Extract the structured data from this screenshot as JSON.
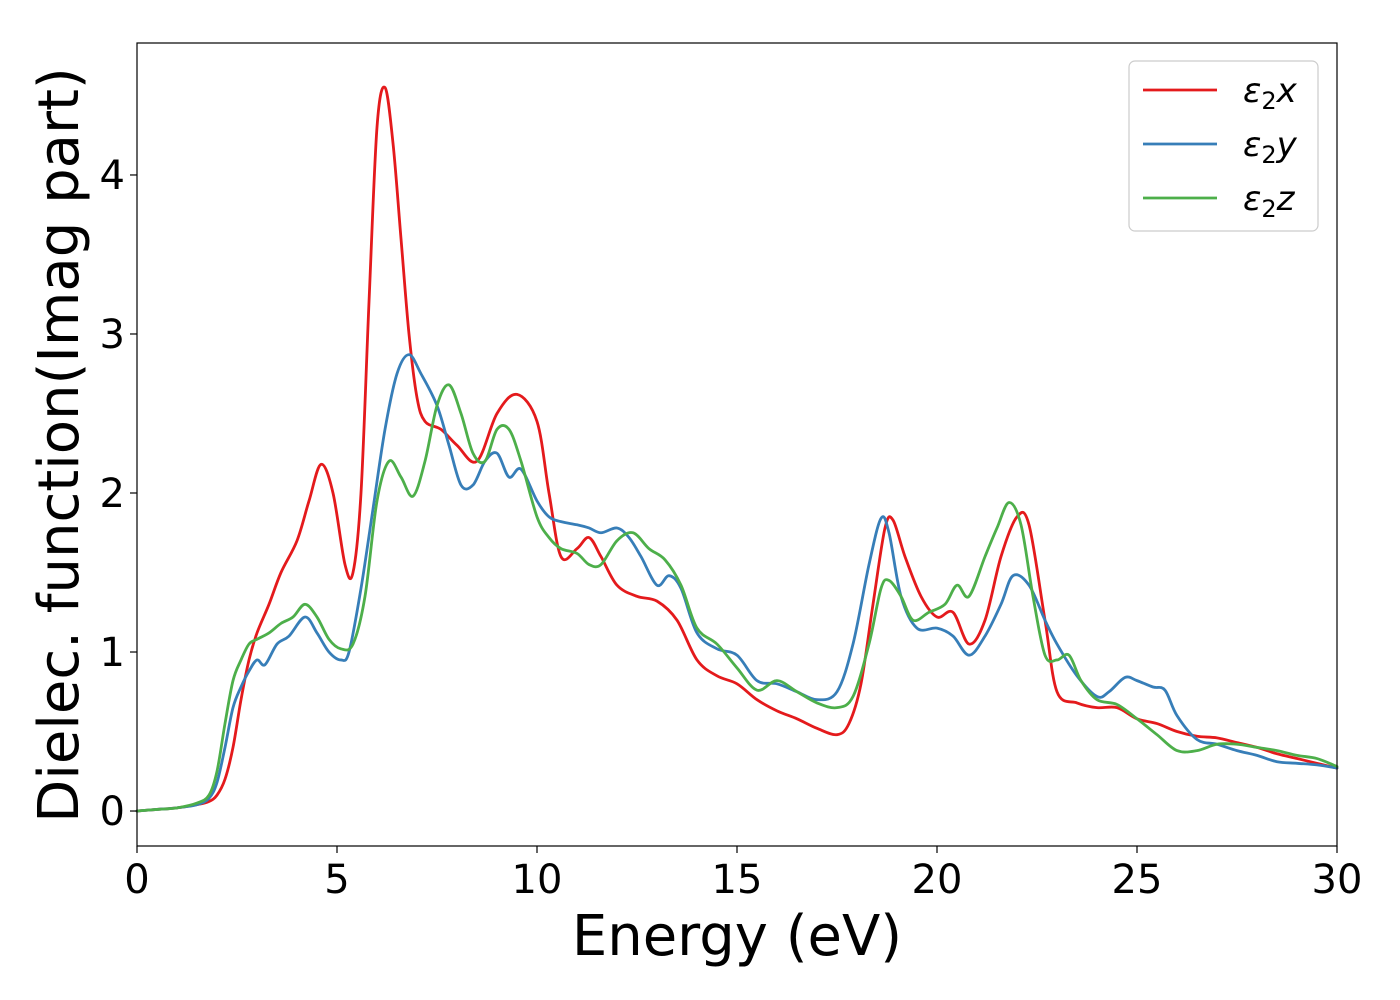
{
  "chart_data": {
    "type": "line",
    "xlabel": "Energy (eV)",
    "ylabel": "Dielec. function(Imag part)",
    "xlim": [
      0,
      30
    ],
    "ylim": [
      -0.22,
      4.83
    ],
    "xticks": [
      "0",
      "5",
      "10",
      "15",
      "20",
      "25",
      "30"
    ],
    "yticks": [
      "0",
      "1",
      "2",
      "3",
      "4"
    ],
    "grid": false,
    "legend_position": "top-right",
    "series": [
      {
        "name": "ε2x",
        "legend_base": "ε",
        "legend_sub": "2",
        "legend_tail": "x",
        "color": "#e41a1c",
        "x": [
          0,
          0.5,
          1.0,
          1.5,
          1.8,
          2.0,
          2.2,
          2.4,
          2.6,
          2.8,
          3.0,
          3.3,
          3.6,
          4.0,
          4.3,
          4.6,
          4.9,
          5.2,
          5.4,
          5.6,
          5.8,
          6.0,
          6.2,
          6.4,
          6.6,
          6.8,
          7.0,
          7.2,
          7.6,
          8.0,
          8.5,
          9.0,
          9.5,
          10.0,
          10.3,
          10.6,
          11.0,
          11.3,
          11.6,
          12.0,
          12.5,
          13.0,
          13.5,
          14.0,
          14.5,
          15.0,
          15.5,
          16.0,
          16.5,
          17.0,
          17.5,
          17.8,
          18.1,
          18.4,
          18.7,
          18.9,
          19.2,
          19.6,
          20.0,
          20.4,
          20.8,
          21.2,
          21.6,
          22.0,
          22.3,
          22.7,
          23.0,
          23.5,
          24.0,
          24.5,
          25.0,
          25.5,
          26.0,
          26.5,
          27.0,
          27.5,
          28.0,
          28.5,
          29.0,
          29.5,
          30.0
        ],
        "y": [
          0,
          0.01,
          0.02,
          0.04,
          0.06,
          0.1,
          0.2,
          0.4,
          0.7,
          0.95,
          1.12,
          1.3,
          1.5,
          1.7,
          1.95,
          2.18,
          2.0,
          1.55,
          1.5,
          2.0,
          3.2,
          4.3,
          4.55,
          4.2,
          3.6,
          3.0,
          2.6,
          2.45,
          2.4,
          2.3,
          2.2,
          2.5,
          2.62,
          2.45,
          2.0,
          1.6,
          1.65,
          1.72,
          1.6,
          1.42,
          1.35,
          1.32,
          1.2,
          0.95,
          0.85,
          0.8,
          0.7,
          0.63,
          0.58,
          0.52,
          0.48,
          0.55,
          0.8,
          1.3,
          1.78,
          1.83,
          1.6,
          1.35,
          1.22,
          1.25,
          1.05,
          1.2,
          1.6,
          1.85,
          1.8,
          1.2,
          0.75,
          0.68,
          0.65,
          0.65,
          0.58,
          0.55,
          0.5,
          0.47,
          0.46,
          0.43,
          0.4,
          0.36,
          0.33,
          0.3,
          0.27
        ]
      },
      {
        "name": "ε2y",
        "legend_base": "ε",
        "legend_sub": "2",
        "legend_tail": "y",
        "color": "#377eb8",
        "x": [
          0,
          0.5,
          1.0,
          1.5,
          1.8,
          2.0,
          2.2,
          2.4,
          2.6,
          2.8,
          3.0,
          3.2,
          3.5,
          3.8,
          4.2,
          4.5,
          4.8,
          5.1,
          5.3,
          5.6,
          5.9,
          6.2,
          6.5,
          6.8,
          7.1,
          7.5,
          7.8,
          8.1,
          8.4,
          8.7,
          9.0,
          9.3,
          9.6,
          10.0,
          10.3,
          10.6,
          11.0,
          11.3,
          11.6,
          12.0,
          12.3,
          12.6,
          13.0,
          13.3,
          13.6,
          14.0,
          14.5,
          15.0,
          15.5,
          16.0,
          16.5,
          17.0,
          17.5,
          17.9,
          18.3,
          18.6,
          18.8,
          19.1,
          19.5,
          20.0,
          20.4,
          20.8,
          21.2,
          21.6,
          21.9,
          22.3,
          22.7,
          23.0,
          23.5,
          24.0,
          24.3,
          24.7,
          25.0,
          25.4,
          25.7,
          26.0,
          26.5,
          27.0,
          27.5,
          28.0,
          28.5,
          29.0,
          29.5,
          30.0
        ],
        "y": [
          0,
          0.01,
          0.02,
          0.04,
          0.08,
          0.18,
          0.4,
          0.65,
          0.78,
          0.88,
          0.95,
          0.92,
          1.05,
          1.1,
          1.22,
          1.12,
          1.0,
          0.95,
          1.0,
          1.4,
          1.9,
          2.4,
          2.75,
          2.87,
          2.75,
          2.55,
          2.3,
          2.05,
          2.05,
          2.2,
          2.25,
          2.1,
          2.15,
          1.95,
          1.85,
          1.82,
          1.8,
          1.78,
          1.75,
          1.78,
          1.72,
          1.6,
          1.42,
          1.48,
          1.4,
          1.12,
          1.02,
          0.98,
          0.82,
          0.8,
          0.75,
          0.7,
          0.75,
          1.05,
          1.55,
          1.84,
          1.75,
          1.35,
          1.15,
          1.15,
          1.1,
          0.98,
          1.1,
          1.3,
          1.48,
          1.42,
          1.2,
          1.05,
          0.85,
          0.72,
          0.75,
          0.84,
          0.82,
          0.78,
          0.76,
          0.6,
          0.45,
          0.42,
          0.38,
          0.35,
          0.31,
          0.3,
          0.29,
          0.27
        ]
      },
      {
        "name": "ε2z",
        "legend_base": "ε",
        "legend_sub": "2",
        "legend_tail": "z",
        "color": "#4daf4a",
        "x": [
          0,
          0.5,
          1.0,
          1.5,
          1.8,
          2.0,
          2.2,
          2.4,
          2.6,
          2.8,
          3.0,
          3.3,
          3.6,
          3.9,
          4.2,
          4.5,
          4.8,
          5.1,
          5.4,
          5.7,
          6.0,
          6.3,
          6.6,
          6.9,
          7.2,
          7.5,
          7.8,
          8.1,
          8.4,
          8.7,
          9.0,
          9.3,
          9.6,
          10.0,
          10.3,
          10.6,
          11.0,
          11.3,
          11.6,
          12.0,
          12.4,
          12.8,
          13.2,
          13.6,
          14.0,
          14.5,
          15.0,
          15.5,
          16.0,
          16.5,
          17.0,
          17.5,
          17.9,
          18.3,
          18.6,
          18.8,
          19.1,
          19.4,
          19.8,
          20.2,
          20.5,
          20.8,
          21.2,
          21.5,
          21.8,
          22.1,
          22.4,
          22.7,
          23.0,
          23.3,
          23.6,
          24.0,
          24.5,
          25.0,
          25.5,
          26.0,
          26.5,
          27.0,
          27.5,
          28.0,
          28.5,
          29.0,
          29.5,
          30.0
        ],
        "y": [
          0,
          0.01,
          0.02,
          0.05,
          0.1,
          0.25,
          0.55,
          0.82,
          0.95,
          1.05,
          1.08,
          1.12,
          1.18,
          1.22,
          1.3,
          1.22,
          1.08,
          1.02,
          1.05,
          1.35,
          1.95,
          2.2,
          2.1,
          1.98,
          2.2,
          2.55,
          2.68,
          2.5,
          2.25,
          2.2,
          2.4,
          2.4,
          2.2,
          1.85,
          1.72,
          1.65,
          1.62,
          1.55,
          1.55,
          1.7,
          1.75,
          1.65,
          1.58,
          1.42,
          1.15,
          1.05,
          0.9,
          0.76,
          0.82,
          0.75,
          0.68,
          0.65,
          0.72,
          1.05,
          1.4,
          1.45,
          1.35,
          1.2,
          1.25,
          1.3,
          1.42,
          1.35,
          1.6,
          1.78,
          1.94,
          1.8,
          1.35,
          0.98,
          0.95,
          0.98,
          0.82,
          0.7,
          0.67,
          0.58,
          0.48,
          0.38,
          0.38,
          0.42,
          0.42,
          0.4,
          0.38,
          0.35,
          0.33,
          0.28
        ]
      }
    ]
  }
}
